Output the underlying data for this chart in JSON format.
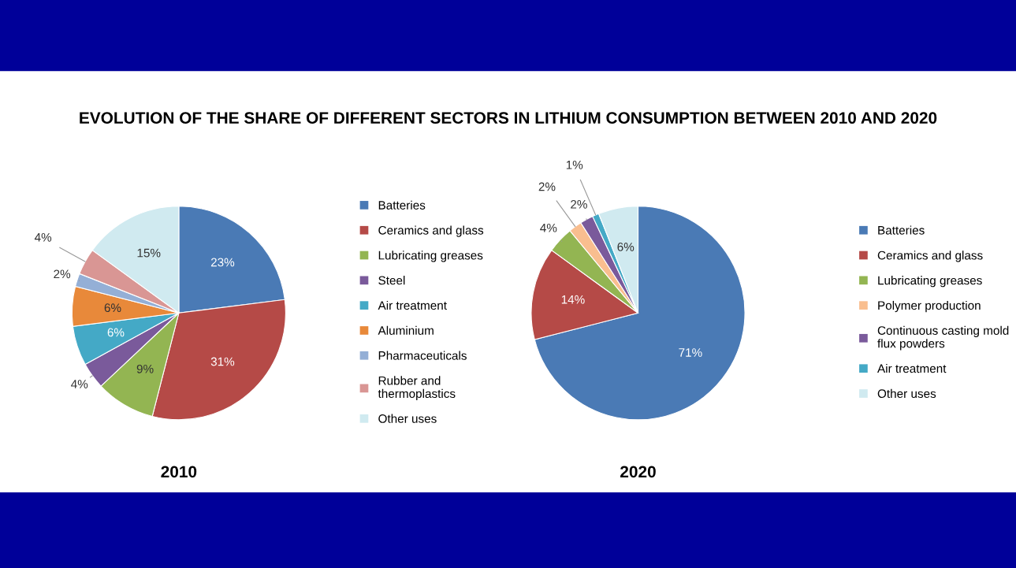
{
  "chart_data": [
    {
      "type": "pie",
      "title": "EVOLUTION OF THE SHARE OF DIFFERENT SECTORS IN LITHIUM CONSUMPTION BETWEEN 2010 AND 2020",
      "xlabel": "2010",
      "legend": "right",
      "categories": [
        "Batteries",
        "Ceramics and glass",
        "Lubricating greases",
        "Steel",
        "Air treatment",
        "Aluminium",
        "Pharmaceuticals",
        "Rubber and thermoplastics",
        "Other uses"
      ],
      "values": [
        23,
        31,
        9,
        4,
        6,
        6,
        2,
        4,
        15
      ],
      "value_labels": [
        "23%",
        "31%",
        "9%",
        "4%",
        "6%",
        "6%",
        "2%",
        "4%",
        "15%"
      ],
      "colors": [
        "#4a7ab5",
        "#b54a47",
        "#93b552",
        "#7a5a9b",
        "#44a9c6",
        "#e8893a",
        "#94afd6",
        "#d99694",
        "#d0eaf0"
      ]
    },
    {
      "type": "pie",
      "xlabel": "2020",
      "legend": "right",
      "categories": [
        "Batteries",
        "Ceramics and glass",
        "Lubricating greases",
        "Polymer production",
        "Continuous casting mold flux powders",
        "Air treatment",
        "Other uses"
      ],
      "values": [
        71,
        14,
        4,
        2,
        2,
        1,
        6
      ],
      "value_labels": [
        "71%",
        "14%",
        "4%",
        "2%",
        "2%",
        "1%",
        "6%"
      ],
      "colors": [
        "#4a7ab5",
        "#b54a47",
        "#93b552",
        "#f9be8f",
        "#7a5a9b",
        "#44a9c6",
        "#d0eaf0"
      ]
    }
  ]
}
